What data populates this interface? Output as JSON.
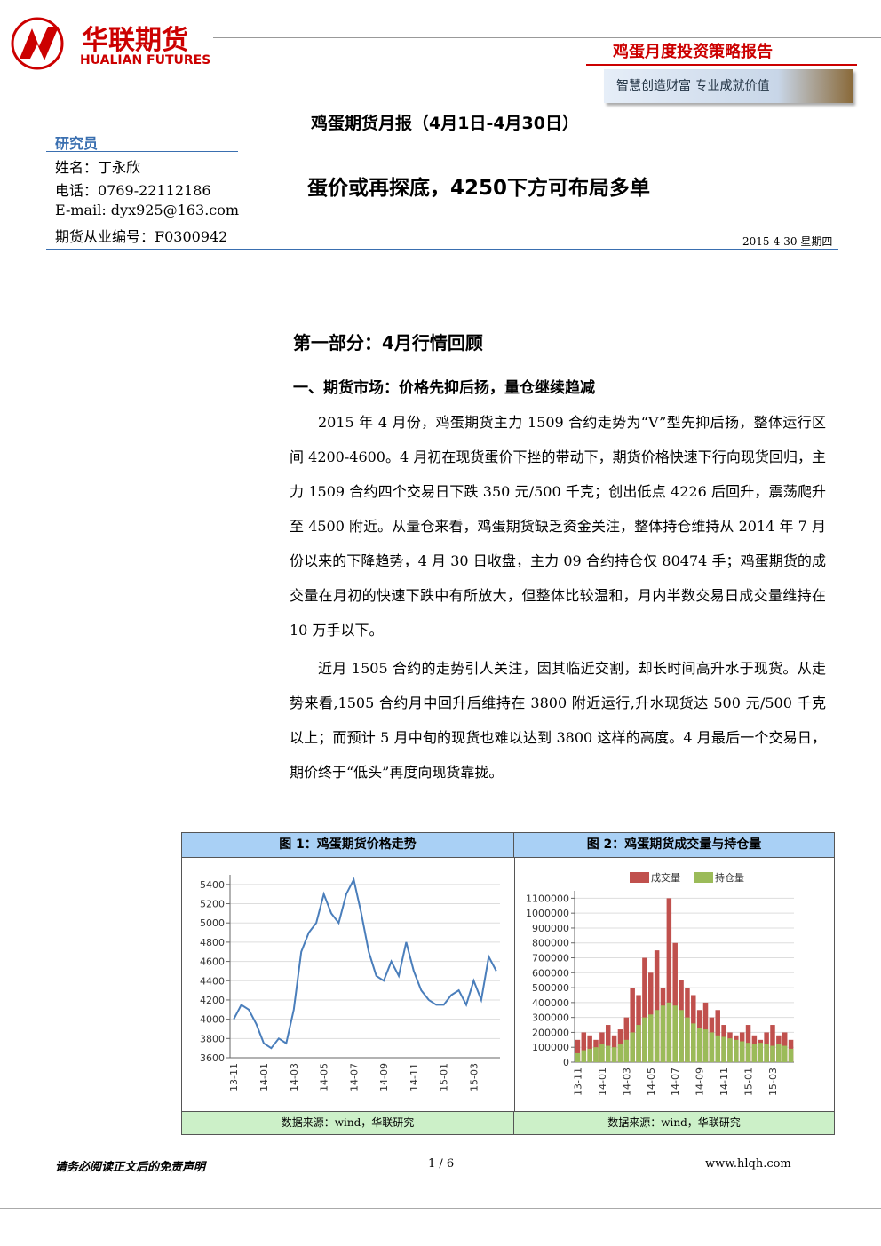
{
  "header": {
    "logo_cn": "华联期货",
    "logo_en": "HUALIAN FUTURES",
    "report_type": "鸡蛋月度投资策略报告",
    "slogan": "智慧创造财富  专业成就价值"
  },
  "title": "鸡蛋期货月报（4月1日-4月30日）",
  "headline": "蛋价或再探底，4250下方可布局多单",
  "date": "2015-4-30  星期四",
  "researcher": {
    "label": "研究员",
    "name": "姓名：丁永欣",
    "phone": "电话：0769-22112186",
    "email": "E-mail: dyx925@163.com",
    "license": "期货从业编号：F0300942"
  },
  "section": "第一部分：4月行情回顾",
  "subsection": "一、期货市场：价格先抑后扬，量仓继续趋减",
  "paragraphs": [
    "2015 年 4 月份，鸡蛋期货主力 1509 合约走势为“V”型先抑后扬，整体运行区间 4200-4600。4 月初在现货蛋价下挫的带动下，期货价格快速下行向现货回归，主力 1509 合约四个交易日下跌 350 元/500 千克；创出低点 4226 后回升，震荡爬升至 4500 附近。从量仓来看，鸡蛋期货缺乏资金关注，整体持仓维持从 2014 年 7 月份以来的下降趋势，4 月 30 日收盘，主力 09 合约持仓仅 80474 手；鸡蛋期货的成交量在月初的快速下跌中有所放大，但整体比较温和，月内半数交易日成交量维持在 10 万手以下。",
    "近月 1505 合约的走势引人关注，因其临近交割，却长时间高升水于现货。从走势来看,1505 合约月中回升后维持在 3800 附近运行,升水现货达 500 元/500 千克以上；而预计 5 月中旬的现货也难以达到 3800 这样的高度。4 月最后一个交易日，期价终于“低头”再度向现货靠拢。"
  ],
  "figures": [
    {
      "caption": "图 1：鸡蛋期货价格走势",
      "source": "数据来源：wind，华联研究",
      "chart": {
        "type": "line",
        "color": "#4a7ebb",
        "grid": true,
        "categories": [
          "13-11",
          null,
          null,
          null,
          "14-01",
          null,
          null,
          null,
          "14-03",
          null,
          null,
          null,
          "14-05",
          null,
          null,
          null,
          "14-07",
          null,
          null,
          null,
          "14-09",
          null,
          null,
          null,
          "14-11",
          null,
          null,
          null,
          "15-01",
          null,
          null,
          null,
          "15-03",
          null,
          null,
          null
        ],
        "values": [
          4000,
          4150,
          4100,
          3950,
          3750,
          3700,
          3800,
          3750,
          4100,
          4700,
          4900,
          5000,
          5300,
          5100,
          5000,
          5300,
          5450,
          5100,
          4700,
          4450,
          4400,
          4600,
          4450,
          4800,
          4500,
          4300,
          4200,
          4150,
          4150,
          4250,
          4300,
          4150,
          4400,
          4200,
          4650,
          4500
        ],
        "ylim": [
          3600,
          5500
        ],
        "yticks": [
          3600,
          3800,
          4000,
          4200,
          4400,
          4600,
          4800,
          5000,
          5200,
          5400
        ]
      }
    },
    {
      "caption": "图 2：鸡蛋期货成交量与持仓量",
      "source": "数据来源：wind，华联研究",
      "chart": {
        "type": "bar",
        "grid": true,
        "legend": "top",
        "categories": [
          "13-11",
          null,
          null,
          null,
          "14-01",
          null,
          null,
          null,
          "14-03",
          null,
          null,
          null,
          "14-05",
          null,
          null,
          null,
          "14-07",
          null,
          null,
          null,
          "14-09",
          null,
          null,
          null,
          "14-11",
          null,
          null,
          null,
          "15-01",
          null,
          null,
          null,
          "15-03",
          null,
          null,
          null
        ],
        "series": [
          {
            "name": "成交量",
            "color": "#c0504d",
            "values": [
              150000,
              200000,
              180000,
              150000,
              200000,
              250000,
              180000,
              220000,
              300000,
              500000,
              450000,
              700000,
              600000,
              750000,
              500000,
              1100000,
              800000,
              550000,
              500000,
              450000,
              350000,
              400000,
              300000,
              350000,
              250000,
              200000,
              180000,
              200000,
              250000,
              180000,
              150000,
              200000,
              250000,
              180000,
              200000,
              150000
            ]
          },
          {
            "name": "持仓量",
            "color": "#9bbb59",
            "values": [
              60000,
              80000,
              90000,
              100000,
              120000,
              110000,
              100000,
              120000,
              150000,
              200000,
              250000,
              300000,
              320000,
              350000,
              380000,
              400000,
              380000,
              350000,
              300000,
              260000,
              230000,
              220000,
              200000,
              180000,
              170000,
              160000,
              150000,
              140000,
              130000,
              120000,
              130000,
              120000,
              110000,
              120000,
              110000,
              90000
            ]
          }
        ],
        "ylim": [
          0,
          1150000
        ],
        "yticks": [
          0,
          100000,
          200000,
          300000,
          400000,
          500000,
          600000,
          700000,
          800000,
          900000,
          1000000,
          1100000
        ]
      }
    }
  ],
  "footer": {
    "disclaimer": "请务必阅读正文后的免责声明",
    "page": "1 / 6",
    "url": "www.hlqh.com"
  }
}
